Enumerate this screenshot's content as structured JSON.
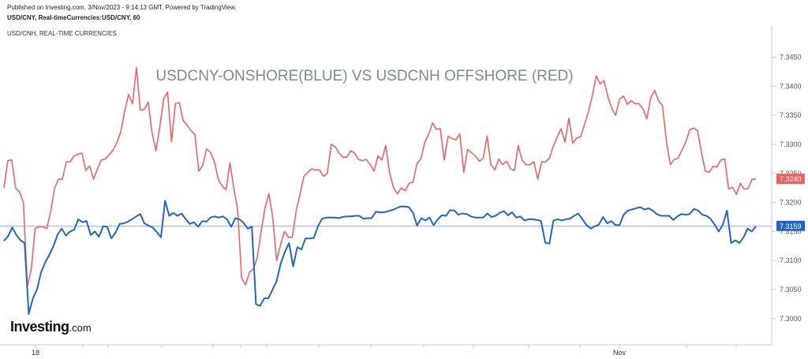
{
  "header": {
    "published": "Published on Investing.com, 3/Nov/2023 - 9:14:13 GMT, Powered by TradingView.",
    "symbol": "USD/CNY, Real-timeCurrencies:USD/CNY, 60",
    "overlay_symbol": "USD/CNH, REAL-TIME CURRENCIES"
  },
  "logo": {
    "main": "Investing",
    "domain": ".com"
  },
  "colors": {
    "onshore": "#2464c8",
    "offshore": "#f06262",
    "axis": "#c8c8c8",
    "priceline": "#8fa9e8"
  },
  "chart_data": {
    "type": "line",
    "title": "USDCNY-ONSHORE(BLUE) VS USDCNH OFFSHORE (RED)",
    "ylim": [
      7.2955,
      7.3505
    ],
    "yticks": [
      "7.3450",
      "7.3400",
      "7.3350",
      "7.3300",
      "7.3250",
      "7.3200",
      "7.3150",
      "7.3100",
      "7.3050",
      "7.3000"
    ],
    "xticks": [
      "18",
      "Nov"
    ],
    "last_values": {
      "onshore": "7.3159",
      "offshore": "7.3240"
    },
    "series": [
      {
        "name": "USD/CNY",
        "values": [
          7.3134,
          7.3142,
          7.3157,
          7.3144,
          7.3135,
          7.313,
          7.3008,
          7.3035,
          7.305,
          7.308,
          7.3097,
          7.311,
          7.3125,
          7.3145,
          7.3155,
          7.3143,
          7.315,
          7.3153,
          7.3171,
          7.3166,
          7.3168,
          7.3144,
          7.315,
          7.3141,
          7.3159,
          7.3158,
          7.3138,
          7.3148,
          7.3163,
          7.3164,
          7.3167,
          7.3171,
          7.3176,
          7.318,
          7.3164,
          7.316,
          7.3157,
          7.3149,
          7.314,
          7.3203,
          7.3177,
          7.3182,
          7.3177,
          7.3181,
          7.3171,
          7.3163,
          7.3166,
          7.3158,
          7.3168,
          7.3167,
          7.3174,
          7.3176,
          7.3174,
          7.3176,
          7.3171,
          7.3158,
          7.3173,
          7.3171,
          7.3165,
          7.3155,
          7.3158,
          7.3025,
          7.3022,
          7.3035,
          7.3035,
          7.305,
          7.3065,
          7.3095,
          7.3115,
          7.313,
          7.309,
          7.3123,
          7.3119,
          7.3138,
          7.3138,
          7.3139,
          7.3159,
          7.3172,
          7.3174,
          7.3174,
          7.3174,
          7.3173,
          7.3175,
          7.3176,
          7.3176,
          7.3177,
          7.3177,
          7.3172,
          7.3173,
          7.3173,
          7.3184,
          7.3183,
          7.3183,
          7.3185,
          7.3187,
          7.319,
          7.3193,
          7.3193,
          7.3192,
          7.3182,
          7.316,
          7.3173,
          7.3169,
          7.3174,
          7.3161,
          7.3171,
          7.3178,
          7.3177,
          7.3187,
          7.3186,
          7.3179,
          7.3181,
          7.318,
          7.3176,
          7.3174,
          7.3174,
          7.3174,
          7.3181,
          7.3175,
          7.3177,
          7.3182,
          7.3185,
          7.3178,
          7.3183,
          7.3174,
          7.3176,
          7.3169,
          7.3171,
          7.3171,
          7.317,
          7.3168,
          7.3131,
          7.3129,
          7.3169,
          7.3171,
          7.3169,
          7.3171,
          7.3172,
          7.3177,
          7.3181,
          7.3171,
          7.3161,
          7.3155,
          7.3159,
          7.3162,
          7.3175,
          7.3164,
          7.3168,
          7.3161,
          7.3161,
          7.3179,
          7.3186,
          7.3188,
          7.319,
          7.3192,
          7.3188,
          7.319,
          7.3186,
          7.318,
          7.3177,
          7.3177,
          7.3177,
          7.317,
          7.3176,
          7.318,
          7.3179,
          7.318,
          7.3189,
          7.3186,
          7.3179,
          7.3177,
          7.3172,
          7.3162,
          7.315,
          7.3162,
          7.3186,
          7.313,
          7.3135,
          7.313,
          7.314,
          7.3155,
          7.315,
          7.3159
        ]
      },
      {
        "name": "USD/CNH",
        "values": [
          7.3225,
          7.3272,
          7.3273,
          7.3225,
          7.3218,
          7.32,
          7.3055,
          7.3085,
          7.3155,
          7.3158,
          7.3158,
          7.3155,
          7.3185,
          7.3225,
          7.324,
          7.324,
          7.327,
          7.327,
          7.328,
          7.3283,
          7.3285,
          7.3255,
          7.3263,
          7.324,
          7.3258,
          7.3273,
          7.3275,
          7.3282,
          7.329,
          7.3303,
          7.3322,
          7.3358,
          7.3386,
          7.337,
          7.3432,
          7.3359,
          7.336,
          7.3373,
          7.3321,
          7.3289,
          7.333,
          7.3378,
          7.339,
          7.3305,
          7.337,
          7.3372,
          7.3341,
          7.3333,
          7.3324,
          7.3317,
          7.3254,
          7.3263,
          7.3292,
          7.3286,
          7.3271,
          7.324,
          7.3228,
          7.3222,
          7.3268,
          7.3225,
          7.3186,
          7.307,
          7.3058,
          7.308,
          7.3085,
          7.3105,
          7.315,
          7.319,
          7.3215,
          7.3173,
          7.31,
          7.3128,
          7.315,
          7.314,
          7.314,
          7.3185,
          7.3215,
          7.3245,
          7.3252,
          7.3258,
          7.3256,
          7.3256,
          7.3245,
          7.325,
          7.33,
          7.3296,
          7.3285,
          7.3278,
          7.3278,
          7.3289,
          7.3285,
          7.3274,
          7.3272,
          7.3274,
          7.3265,
          7.3254,
          7.328,
          7.3273,
          7.3298,
          7.3251,
          7.3225,
          7.3215,
          7.3225,
          7.322,
          7.3233,
          7.3235,
          7.3267,
          7.3275,
          7.3303,
          7.3317,
          7.3337,
          7.3326,
          7.3327,
          7.3273,
          7.3314,
          7.331,
          7.3308,
          7.3318,
          7.3252,
          7.3291,
          7.3286,
          7.328,
          7.3271,
          7.3276,
          7.3314,
          7.3265,
          7.3256,
          7.3275,
          7.3265,
          7.3271,
          7.3258,
          7.3255,
          7.3298,
          7.3273,
          7.3265,
          7.3265,
          7.327,
          7.324,
          7.327,
          7.327,
          7.3276,
          7.3297,
          7.3313,
          7.3327,
          7.3304,
          7.3345,
          7.3302,
          7.3311,
          7.3313,
          7.3334,
          7.3356,
          7.3383,
          7.3418,
          7.3404,
          7.341,
          7.3382,
          7.3362,
          7.335,
          7.3378,
          7.3383,
          7.3369,
          7.3375,
          7.337,
          7.337,
          7.3361,
          7.3344,
          7.338,
          7.3393,
          7.3375,
          7.3367,
          7.3307,
          7.3265,
          7.3274,
          7.3276,
          7.329,
          7.3304,
          7.3325,
          7.3328,
          7.3324,
          7.3287,
          7.3254,
          7.3252,
          7.3262,
          7.3261,
          7.3273,
          7.3275,
          7.3223,
          7.3226,
          7.3214,
          7.3233,
          7.3223,
          7.3224,
          7.324,
          7.324
        ]
      }
    ]
  }
}
